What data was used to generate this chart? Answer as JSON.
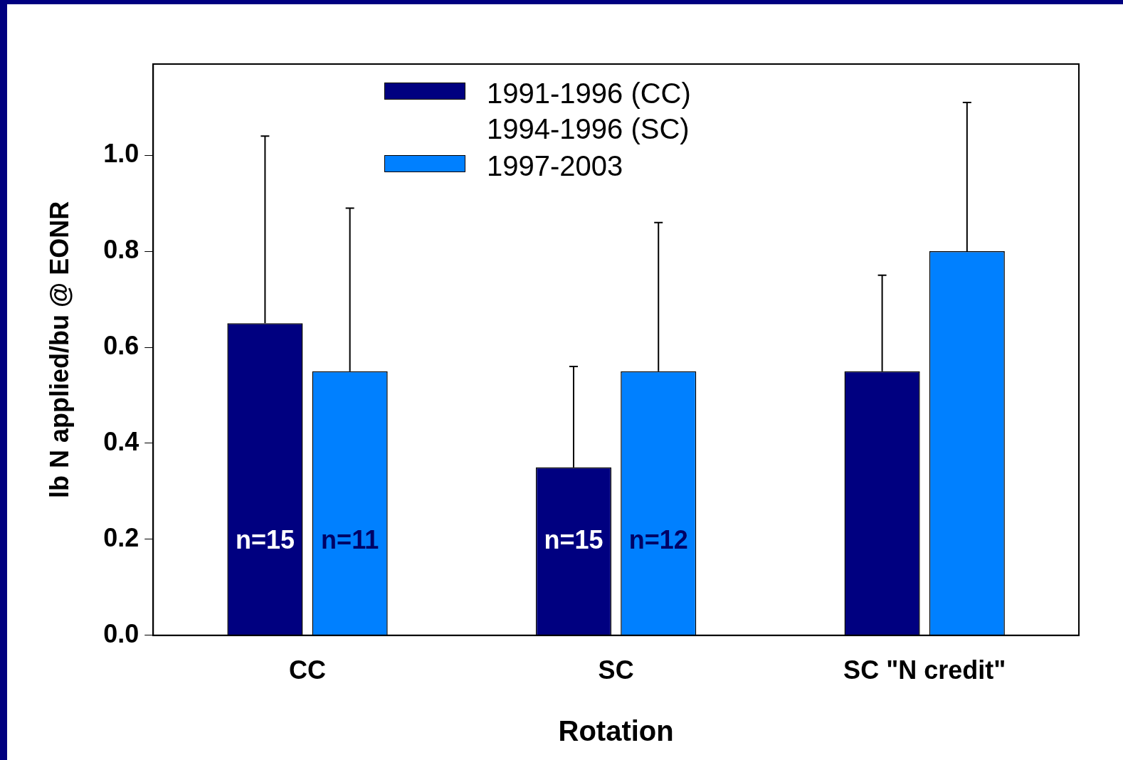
{
  "chart_data": {
    "type": "bar",
    "xlabel": "Rotation",
    "ylabel": "lb N applied/bu @ EONR",
    "categories": [
      "CC",
      "SC",
      "SC \"N credit\""
    ],
    "series": [
      {
        "name": "1991-1996 (CC)\n1994-1996 (SC)",
        "color": "#000080",
        "values": [
          0.65,
          0.35,
          0.55
        ],
        "errors": [
          [
            0.65,
            1.04
          ],
          [
            0.35,
            0.56
          ],
          [
            0.55,
            0.75
          ]
        ]
      },
      {
        "name": "1997-2003",
        "color": "#0080ff",
        "values": [
          0.55,
          0.55,
          0.8
        ],
        "errors": [
          [
            0.55,
            0.89
          ],
          [
            0.55,
            0.86
          ],
          [
            0.8,
            1.11
          ]
        ]
      }
    ],
    "ylim": [
      0,
      1.19
    ],
    "yticks": [
      {
        "value": 0,
        "label": "0.0"
      },
      {
        "value": 0.2,
        "label": "0.2"
      },
      {
        "value": 0.4,
        "label": "0.4"
      },
      {
        "value": 0.6,
        "label": "0.6"
      },
      {
        "value": 0.8,
        "label": "0.8"
      },
      {
        "value": 1,
        "label": "1.0"
      }
    ],
    "annotations": [
      "n=15",
      "n=11",
      "n=15",
      "n=12"
    ],
    "legend": "top",
    "grid": false
  }
}
